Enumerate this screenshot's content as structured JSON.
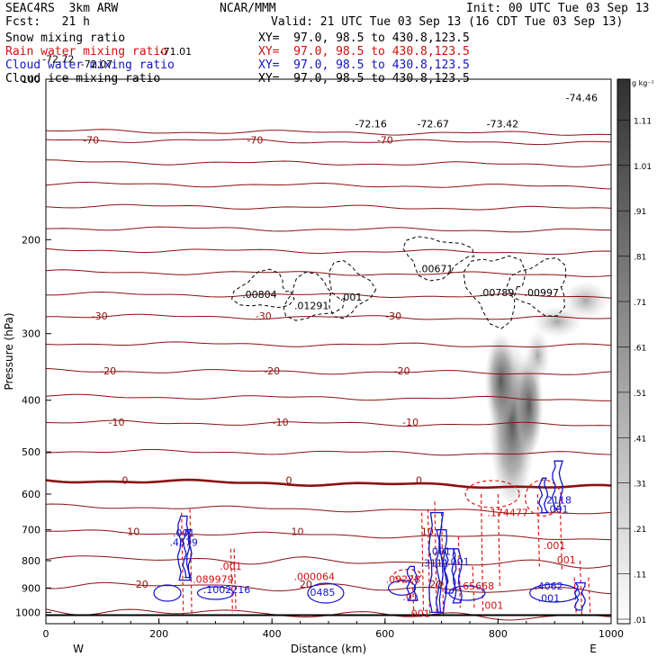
{
  "header": {
    "left1": "SEAC4RS  3km ARW",
    "center1": "NCAR/MMM",
    "right1": "Init: 00 UTC Tue 03 Sep 13",
    "left2": "Fcst:   21 h",
    "right2": "Valid: 21 UTC Tue 03 Sep 13 (16 CDT Tue 03 Sep 13)",
    "fields": [
      {
        "name": "Snow mixing ratio",
        "xy": "XY=  97.0, 98.5 to 430.8,123.5",
        "color": "#000000"
      },
      {
        "name": "Rain water mixing ratio",
        "xy": "XY=  97.0, 98.5 to 430.8,123.5",
        "color": "#d01010"
      },
      {
        "name": "Cloud water mixing ratio",
        "xy": "XY=  97.0, 98.5 to 430.8,123.5",
        "color": "#1414c8"
      },
      {
        "name": "Cloud ice mixing ratio",
        "xy": "XY=  97.0, 98.5 to 430.8,123.5",
        "color": "#000000"
      }
    ]
  },
  "chart_data": {
    "type": "heatmap",
    "xlabel": "Distance (km)",
    "ylabel": "Pressure (hPa)",
    "xlim": [
      0,
      1000
    ],
    "ylim": [
      1050,
      100
    ],
    "yscale": "log",
    "x_ticks": [
      "0",
      "200",
      "400",
      "600",
      "800",
      "1000"
    ],
    "x_tick_values": [
      0,
      200,
      400,
      600,
      800,
      1000
    ],
    "y_ticks": [
      "100",
      "200",
      "300",
      "400",
      "500",
      "600",
      "700",
      "800",
      "900",
      "1000"
    ],
    "y_tick_values": [
      100,
      200,
      300,
      400,
      500,
      600,
      700,
      800,
      900,
      1000
    ],
    "left_end_label": "W",
    "right_end_label": "E",
    "colorbar": {
      "unit": "g kg⁻¹",
      "labels": [
        "1.11",
        "1.01",
        ".91",
        ".81",
        ".71",
        ".61",
        ".51",
        ".41",
        ".31",
        ".21",
        ".11",
        ".01"
      ],
      "values": [
        1.11,
        1.01,
        0.91,
        0.81,
        0.71,
        0.61,
        0.51,
        0.41,
        0.31,
        0.21,
        0.11,
        0.01
      ]
    },
    "temperature_contours": [
      {
        "temp_c": -70,
        "pressure": 130,
        "label": "-70"
      },
      {
        "temp_c": -30,
        "pressure": 278,
        "label": "-30"
      },
      {
        "temp_c": -20,
        "pressure": 352,
        "label": "-20"
      },
      {
        "temp_c": -10,
        "pressure": 440,
        "label": "-10"
      },
      {
        "temp_c": 0,
        "pressure": 565,
        "label": "0"
      },
      {
        "temp_c": 10,
        "pressure": 705,
        "label": "10"
      },
      {
        "temp_c": 20,
        "pressure": 885,
        "label": "20"
      }
    ],
    "extremes": [
      {
        "x": 22,
        "p": 93,
        "label": "-72.72",
        "color": "black"
      },
      {
        "x": 90,
        "p": 95,
        "label": "-72.07",
        "color": "black"
      },
      {
        "x": 230,
        "p": 90,
        "label": "-71.01",
        "color": "black"
      },
      {
        "x": 575,
        "p": 123,
        "label": "-72.16",
        "color": "black"
      },
      {
        "x": 685,
        "p": 123,
        "label": "-72.67",
        "color": "black"
      },
      {
        "x": 808,
        "p": 123,
        "label": "-73.42",
        "color": "black"
      },
      {
        "x": 948,
        "p": 110,
        "label": "-74.46",
        "color": "black"
      },
      {
        "x": 378,
        "p": 257,
        "label": ".00804",
        "color": "black"
      },
      {
        "x": 470,
        "p": 270,
        "label": ".01291",
        "color": "black"
      },
      {
        "x": 540,
        "p": 260,
        "label": ".001",
        "color": "black"
      },
      {
        "x": 690,
        "p": 230,
        "label": ".00671",
        "color": "black"
      },
      {
        "x": 798,
        "p": 255,
        "label": ".00789",
        "color": "black"
      },
      {
        "x": 877,
        "p": 255,
        "label": ".00997",
        "color": "black"
      },
      {
        "x": 817,
        "p": 660,
        "label": ".174477",
        "color": "red"
      },
      {
        "x": 905,
        "p": 625,
        "label": ".2118",
        "color": "blue"
      },
      {
        "x": 905,
        "p": 650,
        "label": ".001",
        "color": "blue"
      },
      {
        "x": 900,
        "p": 760,
        "label": ".001",
        "color": "red"
      },
      {
        "x": 918,
        "p": 810,
        "label": ".001",
        "color": "red"
      },
      {
        "x": 244,
        "p": 720,
        "label": ".001",
        "color": "blue"
      },
      {
        "x": 244,
        "p": 750,
        "label": ".4579",
        "color": "blue"
      },
      {
        "x": 296,
        "p": 880,
        "label": ".089979",
        "color": "red"
      },
      {
        "x": 327,
        "p": 832,
        "label": ".001",
        "color": "red"
      },
      {
        "x": 320,
        "p": 920,
        "label": ".1002216",
        "color": "blue"
      },
      {
        "x": 475,
        "p": 870,
        "label": ".000064",
        "color": "red"
      },
      {
        "x": 487,
        "p": 930,
        "label": ".0485",
        "color": "blue"
      },
      {
        "x": 632,
        "p": 880,
        "label": ".09278",
        "color": "red"
      },
      {
        "x": 697,
        "p": 780,
        "label": ".001",
        "color": "blue"
      },
      {
        "x": 688,
        "p": 820,
        "label": ".3111",
        "color": "blue"
      },
      {
        "x": 730,
        "p": 815,
        "label": ".001",
        "color": "blue"
      },
      {
        "x": 757,
        "p": 905,
        "label": ".165668",
        "color": "red"
      },
      {
        "x": 790,
        "p": 985,
        "label": ".001",
        "color": "red"
      },
      {
        "x": 890,
        "p": 905,
        "label": ".4062",
        "color": "blue"
      },
      {
        "x": 890,
        "p": 955,
        "label": ".001",
        "color": "blue"
      },
      {
        "x": 645,
        "p": 950,
        "label": ".01",
        "color": "red"
      },
      {
        "x": 660,
        "p": 1020,
        "label": ".001",
        "color": "red"
      }
    ]
  }
}
